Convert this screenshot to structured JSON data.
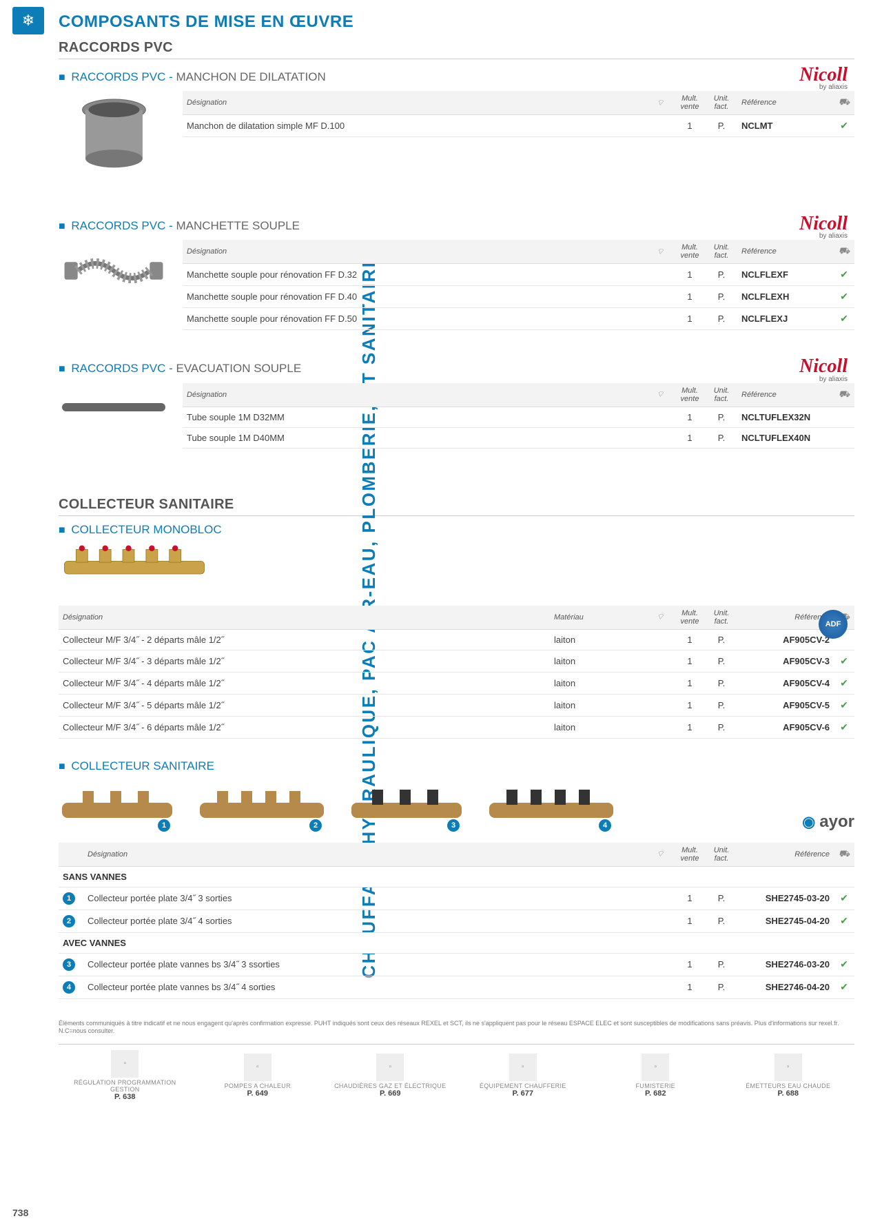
{
  "page_number": "738",
  "side_label": "CHAUFFAGE HYDRAULIQUE, PAC AIR-EAU, PLOMBERIE, ET SANITAIRE",
  "page_title": "COMPOSANTS DE MISE EN ŒUVRE",
  "section_raccords_title": "RACCORDS PVC",
  "headers": {
    "designation": "Désignation",
    "materiau": "Matériau",
    "mult_vente": "Mult. vente",
    "unit_fact": "Unit. fact.",
    "reference": "Référence"
  },
  "brand_nicoll": {
    "logo": "Nicoll",
    "byline": "by aliaxis"
  },
  "brand_ayor": "ayor",
  "sub1": {
    "prefix": "RACCORDS PVC  - ",
    "suffix": "MANCHON DE DILATATION",
    "rows": [
      {
        "des": "Manchon de dilatation simple MF D.100",
        "mult": "1",
        "unit": "P.",
        "ref": "NCLMT",
        "chk": "✔"
      }
    ]
  },
  "sub2": {
    "prefix": "RACCORDS PVC  - ",
    "suffix": "MANCHETTE SOUPLE",
    "rows": [
      {
        "des": "Manchette souple pour rénovation FF D.32",
        "mult": "1",
        "unit": "P.",
        "ref": "NCLFLEXF",
        "chk": "✔"
      },
      {
        "des": "Manchette souple pour rénovation FF D.40",
        "mult": "1",
        "unit": "P.",
        "ref": "NCLFLEXH",
        "chk": "✔"
      },
      {
        "des": "Manchette souple pour rénovation FF D.50",
        "mult": "1",
        "unit": "P.",
        "ref": "NCLFLEXJ",
        "chk": "✔"
      }
    ]
  },
  "sub3": {
    "prefix": "RACCORDS PVC  - ",
    "suffix": "EVACUATION SOUPLE",
    "rows": [
      {
        "des": "Tube souple 1M D32MM",
        "mult": "1",
        "unit": "P.",
        "ref": "NCLTUFLEX32N",
        "chk": ""
      },
      {
        "des": "Tube souple 1M D40MM",
        "mult": "1",
        "unit": "P.",
        "ref": "NCLTUFLEX40N",
        "chk": ""
      }
    ]
  },
  "section_collecteur_title": "COLLECTEUR SANITAIRE",
  "sub4": {
    "title": "COLLECTEUR MONOBLOC",
    "rows": [
      {
        "des": "Collecteur M/F 3/4˝ - 2 départs mâle 1/2˝",
        "mat": "laiton",
        "mult": "1",
        "unit": "P.",
        "ref": "AF905CV-2",
        "chk": ""
      },
      {
        "des": "Collecteur M/F 3/4˝ - 3 départs mâle 1/2˝",
        "mat": "laiton",
        "mult": "1",
        "unit": "P.",
        "ref": "AF905CV-3",
        "chk": "✔"
      },
      {
        "des": "Collecteur M/F 3/4˝ - 4 départs mâle 1/2˝",
        "mat": "laiton",
        "mult": "1",
        "unit": "P.",
        "ref": "AF905CV-4",
        "chk": "✔"
      },
      {
        "des": "Collecteur M/F 3/4˝ - 5 départs mâle 1/2˝",
        "mat": "laiton",
        "mult": "1",
        "unit": "P.",
        "ref": "AF905CV-5",
        "chk": "✔"
      },
      {
        "des": "Collecteur M/F 3/4˝ - 6 départs mâle 1/2˝",
        "mat": "laiton",
        "mult": "1",
        "unit": "P.",
        "ref": "AF905CV-6",
        "chk": "✔"
      }
    ]
  },
  "sub5": {
    "title": "COLLECTEUR SANITAIRE",
    "group1_label": "SANS VANNES",
    "group2_label": "AVEC VANNES",
    "rows_sans": [
      {
        "num": "1",
        "des": "Collecteur portée plate 3/4˝ 3 sorties",
        "mult": "1",
        "unit": "P.",
        "ref": "SHE2745-03-20",
        "chk": "✔"
      },
      {
        "num": "2",
        "des": "Collecteur portée plate 3/4˝ 4 sorties",
        "mult": "1",
        "unit": "P.",
        "ref": "SHE2745-04-20",
        "chk": "✔"
      }
    ],
    "rows_avec": [
      {
        "num": "3",
        "des": "Collecteur portée plate vannes bs 3/4˝ 3 ssorties",
        "mult": "1",
        "unit": "P.",
        "ref": "SHE2746-03-20",
        "chk": "✔"
      },
      {
        "num": "4",
        "des": "Collecteur portée plate vannes bs 3/4˝ 4 sorties",
        "mult": "1",
        "unit": "P.",
        "ref": "SHE2746-04-20",
        "chk": "✔"
      }
    ]
  },
  "disclaimer": "Éléments communiqués à titre indicatif et ne nous engagent qu'après confirmation expresse. PUHT indiqués sont ceux des réseaux REXEL et SCT, ils ne s'appliquent pas pour le réseau ESPACE ELEC et sont susceptibles de modifications sans préavis. Plus d'informations sur rexel.fr. N.C=nous consulter.",
  "footer": [
    {
      "label": "RÉGULATION PROGRAMMATION GESTION",
      "page": "P. 638"
    },
    {
      "label": "POMPES A CHALEUR",
      "page": "P. 649"
    },
    {
      "label": "CHAUDIÈRES GAZ ET ÉLECTRIQUE",
      "page": "P. 669"
    },
    {
      "label": "ÉQUIPEMENT CHAUFFERIE",
      "page": "P. 677"
    },
    {
      "label": "FUMISTERIE",
      "page": "P. 682"
    },
    {
      "label": "ÉMETTEURS EAU CHAUDE",
      "page": "P. 688"
    }
  ]
}
